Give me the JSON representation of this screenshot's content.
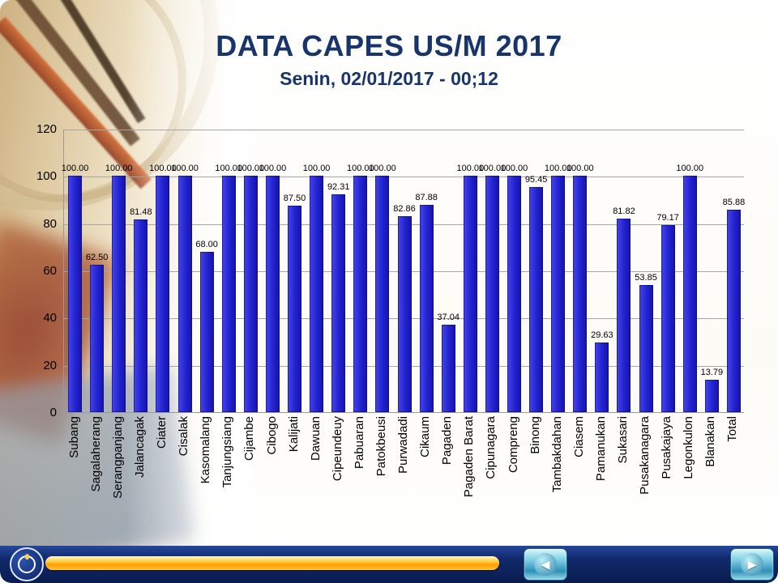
{
  "slide": {
    "title": "DATA CAPES US/M 2017",
    "subtitle": "Senin, 02/01/2017 - 00;12"
  },
  "chart_data": {
    "type": "bar",
    "title": "DATA CAPES US/M 2017",
    "xlabel": "",
    "ylabel": "",
    "ylim": [
      0,
      120
    ],
    "yticks": [
      0,
      20,
      40,
      60,
      80,
      100,
      120
    ],
    "grid": true,
    "legend_position": "none",
    "bar_color": "#2222cf",
    "value_label_decimals": 2,
    "categories": [
      "Subang",
      "Sagalaherang",
      "Serangpanjang",
      "Jalancagak",
      "Ciater",
      "Cisalak",
      "Kasomalang",
      "Tanjungsiang",
      "Cijambe",
      "Cibogo",
      "Kalijati",
      "Dawuan",
      "Cipeundeuy",
      "Pabuaran",
      "Patokbeusi",
      "Purwadadi",
      "Cikaum",
      "Pagaden",
      "Pagaden Barat",
      "Cipunagara",
      "Compreng",
      "Binong",
      "Tambakdahan",
      "Ciasem",
      "Pamanukan",
      "Sukasari",
      "Pusakanagara",
      "Pusakajaya",
      "Legonkulon",
      "Blanakan",
      "Total"
    ],
    "values": [
      100,
      62.5,
      100,
      81.48,
      100,
      100,
      68,
      100,
      100,
      100,
      87.5,
      100,
      92.31,
      100,
      100,
      82.86,
      87.88,
      37.04,
      100,
      100,
      100,
      95.45,
      100,
      100,
      29.63,
      81.82,
      53.85,
      79.17,
      100,
      13.79,
      85.88
    ]
  },
  "footer": {
    "prev_icon": "◀",
    "next_icon": "▶",
    "logo_icon": "education-ministry-emblem"
  }
}
